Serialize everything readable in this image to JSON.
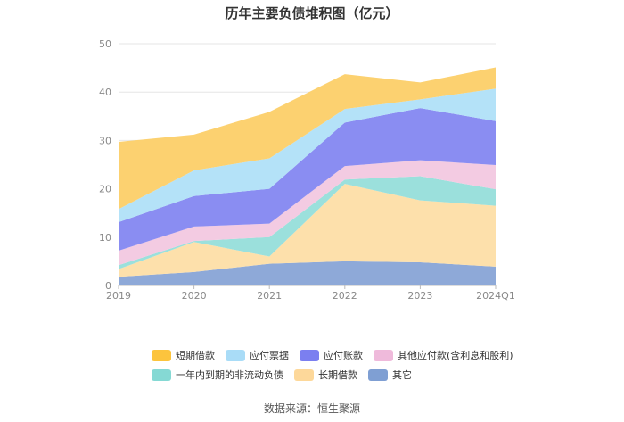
{
  "chart_data": {
    "type": "area",
    "stacked": true,
    "title": "历年主要负债堆积图（亿元）",
    "categories": [
      "2019",
      "2020",
      "2021",
      "2022",
      "2023",
      "2024Q1"
    ],
    "ylim": [
      0,
      50
    ],
    "yticks": [
      0,
      10,
      20,
      30,
      40,
      50
    ],
    "grid": true,
    "legend_position": "bottom",
    "series": [
      {
        "name": "其它",
        "color": "#8ea9d8",
        "values": [
          1.8,
          2.8,
          4.5,
          5.0,
          4.8,
          3.9
        ]
      },
      {
        "name": "长期借款",
        "color": "#fde0ab",
        "values": [
          1.6,
          6.2,
          1.5,
          16.0,
          12.8,
          12.6
        ]
      },
      {
        "name": "一年内到期的非流动负债",
        "color": "#9be0dc",
        "values": [
          0.8,
          0.2,
          4.0,
          0.9,
          5.0,
          3.4
        ]
      },
      {
        "name": "其他应付款(含利息和股利)",
        "color": "#f3cbe2",
        "values": [
          3.0,
          3.0,
          2.8,
          2.8,
          3.3,
          5.0
        ]
      },
      {
        "name": "应付账款",
        "color": "#8a8df2",
        "values": [
          5.9,
          6.3,
          7.2,
          9.0,
          10.8,
          9.1
        ]
      },
      {
        "name": "应付票据",
        "color": "#b4e2f8",
        "values": [
          2.7,
          5.3,
          6.3,
          2.8,
          1.8,
          6.7
        ]
      },
      {
        "name": "短期借款",
        "color": "#fcd170",
        "values": [
          13.9,
          7.4,
          9.6,
          7.2,
          3.5,
          4.4
        ]
      }
    ]
  },
  "legend": {
    "row1": [
      {
        "name": "短期借款",
        "color": "#fcc43d"
      },
      {
        "name": "应付票据",
        "color": "#a9dcf7"
      },
      {
        "name": "应付账款",
        "color": "#7b7ff0"
      },
      {
        "name": "其他应付款(含利息和股利)",
        "color": "#efbadb"
      }
    ],
    "row2": [
      {
        "name": "一年内到期的非流动负债",
        "color": "#85d9d4"
      },
      {
        "name": "长期借款",
        "color": "#fdd89a"
      },
      {
        "name": "其它",
        "color": "#7f9fd3"
      }
    ]
  },
  "source": "数据来源：恒生聚源"
}
